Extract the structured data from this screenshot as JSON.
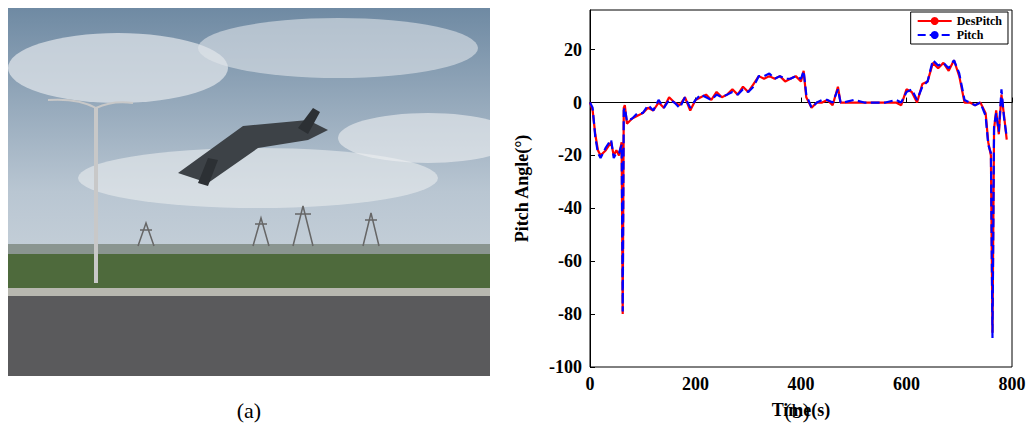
{
  "chart_data": {
    "type": "line",
    "x": [
      0,
      5,
      10,
      15,
      20,
      30,
      40,
      45,
      50,
      55,
      60,
      62,
      64,
      66,
      70,
      80,
      90,
      100,
      110,
      120,
      130,
      140,
      150,
      160,
      170,
      180,
      190,
      200,
      210,
      220,
      230,
      240,
      250,
      260,
      270,
      280,
      290,
      300,
      310,
      320,
      330,
      340,
      350,
      360,
      370,
      380,
      390,
      400,
      405,
      410,
      420,
      430,
      440,
      450,
      460,
      470,
      475,
      480,
      500,
      520,
      540,
      560,
      580,
      590,
      600,
      610,
      620,
      630,
      640,
      650,
      660,
      670,
      680,
      690,
      700,
      710,
      720,
      730,
      740,
      750,
      755,
      760,
      763,
      766,
      770,
      775,
      780,
      785,
      790
    ],
    "series": [
      {
        "name": "DesPitch",
        "color": "#ff0000",
        "line_style": "solid",
        "values": [
          0,
          -3,
          -12,
          -18,
          -20,
          -18,
          -15,
          -20,
          -18,
          -20,
          -15,
          -80,
          -2,
          -1,
          -8,
          -6,
          -5,
          -4,
          -2,
          -3,
          0,
          -2,
          2,
          0,
          -1,
          2,
          -3,
          1,
          2,
          3,
          1,
          4,
          2,
          3,
          5,
          3,
          6,
          4,
          7,
          10,
          9,
          10,
          9,
          10,
          8,
          9,
          10,
          8,
          12,
          2,
          -2,
          0,
          0,
          1,
          -1,
          6,
          0,
          0,
          0,
          0,
          0,
          0,
          0,
          -1,
          5,
          4,
          0,
          7,
          8,
          15,
          13,
          15,
          12,
          16,
          10,
          0,
          0,
          -1,
          0,
          -4,
          -15,
          -20,
          -87,
          -10,
          -3,
          -12,
          3,
          -5,
          -14
        ]
      },
      {
        "name": "Pitch",
        "color": "#0000ff",
        "line_style": "dashed",
        "values": [
          0,
          -2,
          -13,
          -19,
          -21,
          -17,
          -14,
          -21,
          -19,
          -19,
          -16,
          -79,
          -3,
          -2,
          -7,
          -6,
          -4,
          -4,
          -1,
          -3,
          1,
          -2,
          1,
          0,
          -2,
          2,
          -2,
          1,
          3,
          2,
          1,
          3,
          2,
          3,
          4,
          3,
          5,
          4,
          6,
          10,
          10,
          11,
          9,
          10,
          9,
          9,
          10,
          9,
          12,
          3,
          -2,
          0,
          1,
          1,
          0,
          5,
          0,
          0,
          1,
          0,
          0,
          0,
          1,
          0,
          4,
          5,
          1,
          6,
          8,
          16,
          14,
          15,
          13,
          16,
          11,
          1,
          0,
          -1,
          0,
          -5,
          -16,
          -19,
          -89,
          -9,
          -4,
          -11,
          5,
          -6,
          -13
        ]
      }
    ],
    "xlabel": "Time(s)",
    "ylabel": "Pitch Angle(°)",
    "xlim": [
      0,
      800
    ],
    "ylim": [
      -100,
      35
    ],
    "xticks": [
      0,
      200,
      400,
      600,
      800
    ],
    "yticks": [
      -100,
      -80,
      -60,
      -40,
      -20,
      0,
      20
    ],
    "grid": false,
    "legend": "upper right"
  },
  "panel_labels": [
    "(a)",
    "(b)"
  ]
}
